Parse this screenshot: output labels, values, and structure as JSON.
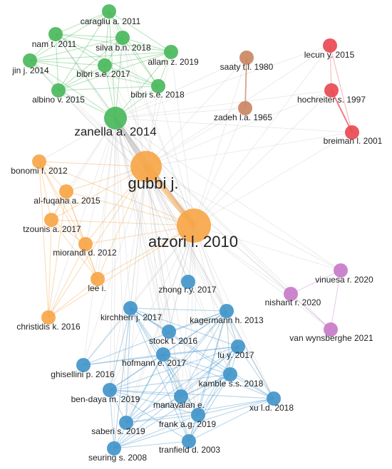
{
  "clusters": [
    {
      "color": "#47b759",
      "nodes": [
        "caragliu a. 2011",
        "nam t. 2011",
        "silva b.n. 2018",
        "allam z. 2019",
        "jin j. 2014",
        "bibri s.e. 2017",
        "bibri s.e. 2018",
        "albino v. 2015",
        "zanella a. 2014"
      ]
    },
    {
      "color": "#c9845f",
      "nodes": [
        "saaty t.l. 1980",
        "zadeh l.a. 1965"
      ]
    },
    {
      "color": "#e9464e",
      "nodes": [
        "lecun y. 2015",
        "hochreiter s. 1997",
        "breiman l. 2001"
      ]
    },
    {
      "color": "#f7a445",
      "nodes": [
        "gubbi j.",
        "bonomi f. 2012",
        "al-fuqaha a. 2015",
        "tzounis a. 2017",
        "atzori l. 2010",
        "miorandi d. 2012",
        "lee i.",
        "christidis k. 2016"
      ]
    },
    {
      "color": "#c778c8",
      "nodes": [
        "vinuesa r. 2020",
        "nishant r. 2020",
        "van wynsberghe 2021"
      ]
    },
    {
      "color": "#3e93c9",
      "nodes": [
        "zhong r.y. 2017",
        "kirchherr j. 2017",
        "kagermann h. 2013",
        "stock t. 2016",
        "lu y. 2017",
        "hofmann e. 2017",
        "ghisellini p. 2016",
        "kamble s.s. 2018",
        "ben-daya m. 2019",
        "manavalan e.",
        "xu l.d. 2018",
        "frank a.g. 2019",
        "saberi s. 2019",
        "tranfield d. 2003",
        "seuring s. 2008"
      ]
    }
  ]
}
